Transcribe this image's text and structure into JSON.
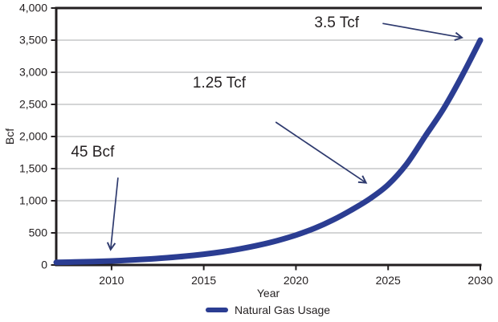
{
  "chart_data": {
    "type": "line",
    "title": "",
    "xlabel": "Year",
    "ylabel": "Bcf",
    "xlim": [
      2007,
      2030
    ],
    "ylim": [
      0,
      4000
    ],
    "x_ticks": [
      2010,
      2015,
      2020,
      2025,
      2030
    ],
    "y_ticks": [
      0,
      500,
      1000,
      1500,
      2000,
      2500,
      3000,
      3500,
      4000
    ],
    "y_tick_labels": [
      "0",
      "500",
      "1,000",
      "1,500",
      "2,000",
      "2,500",
      "3,000",
      "3,500",
      "4,000"
    ],
    "grid": "horizontal",
    "legend_position": "bottom-center",
    "series": [
      {
        "name": "Natural Gas Usage",
        "color": "#2b3d92",
        "x": [
          2007,
          2008,
          2009,
          2010,
          2011,
          2012,
          2013,
          2014,
          2015,
          2016,
          2017,
          2018,
          2019,
          2020,
          2021,
          2022,
          2023,
          2024,
          2025,
          2026,
          2027,
          2028,
          2029,
          2030
        ],
        "values": [
          40,
          46,
          53,
          62,
          76,
          92,
          112,
          137,
          167,
          205,
          252,
          310,
          380,
          465,
          570,
          700,
          855,
          1030,
          1250,
          1570,
          2000,
          2430,
          2940,
          3500
        ]
      }
    ],
    "annotations": [
      {
        "label": "45 Bcf",
        "text_at": {
          "year": 2007.8,
          "bcf": 1890
        },
        "arrow_from": {
          "year": 2010.35,
          "bcf": 1360
        },
        "arrow_to": {
          "year": 2009.95,
          "bcf": 240
        }
      },
      {
        "label": "1.25 Tcf",
        "text_at": {
          "year": 2014.4,
          "bcf": 2960
        },
        "arrow_from": {
          "year": 2018.9,
          "bcf": 2225
        },
        "arrow_to": {
          "year": 2023.8,
          "bcf": 1280
        }
      },
      {
        "label": "3.5 Tcf",
        "text_at": {
          "year": 2021.0,
          "bcf": 3900
        },
        "arrow_from": {
          "year": 2024.7,
          "bcf": 3760
        },
        "arrow_to": {
          "year": 2029.0,
          "bcf": 3540
        }
      }
    ],
    "colors": {
      "curve": "#2b3d92",
      "arrow": "#2e3a6e",
      "grid": "#bbbcbe",
      "axis": "#231f20",
      "text": "#231f20"
    }
  }
}
